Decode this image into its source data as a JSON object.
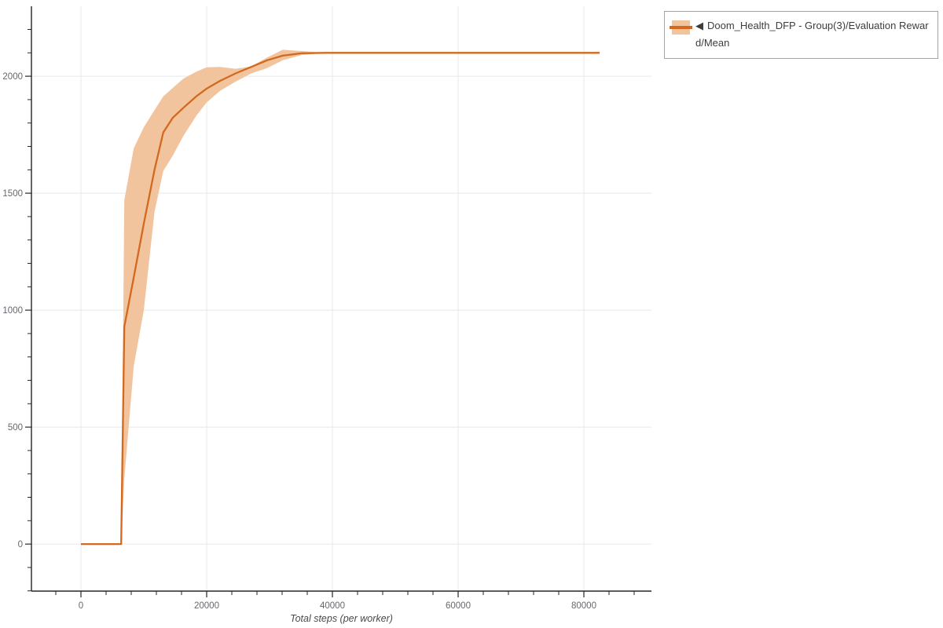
{
  "chart_data": {
    "type": "line",
    "title": "",
    "xlabel": "Total steps (per worker)",
    "ylabel": "",
    "x_ticks": [
      0,
      20000,
      40000,
      60000,
      80000
    ],
    "y_ticks": [
      0,
      500,
      1000,
      1500,
      2000
    ],
    "x_minor_step": 4000,
    "y_minor_step": 100,
    "xlim": [
      -7875,
      90750
    ],
    "ylim": [
      -201,
      2299
    ],
    "grid": true,
    "legend_position": "outside-top-right",
    "series": [
      {
        "name": "Doom_Health_DFP - Group(3)/Evaluation Reward/Mean",
        "legend_marker": "◀",
        "x": [
          0,
          6400,
          6900,
          8400,
          10000,
          11700,
          13100,
          14600,
          16300,
          18400,
          20000,
          22100,
          24600,
          27100,
          29600,
          32100,
          35000,
          38800,
          82500
        ],
        "mean": [
          0,
          0,
          930,
          1140,
          1370,
          1600,
          1760,
          1822,
          1865,
          1915,
          1947,
          1980,
          2012,
          2040,
          2068,
          2088,
          2098,
          2100,
          2100
        ],
        "band_low": [
          0,
          0,
          280,
          760,
          1000,
          1420,
          1595,
          1660,
          1745,
          1833,
          1888,
          1937,
          1977,
          2012,
          2035,
          2068,
          2090,
          2100,
          2100
        ],
        "band_high": [
          0,
          0,
          1470,
          1692,
          1782,
          1855,
          1914,
          1950,
          1990,
          2020,
          2038,
          2040,
          2032,
          2042,
          2080,
          2113,
          2108,
          2100,
          2100
        ]
      }
    ],
    "colors": {
      "line": "#d2691e",
      "band": "#f2c49e",
      "grid": "#e8e8e8",
      "axis": "#262626",
      "tick_label": "#63676c",
      "axis_label": "#4a4a4a",
      "legend_border": "#a3a3a3",
      "legend_text": "#3d3d3d",
      "background": "#ffffff"
    }
  }
}
